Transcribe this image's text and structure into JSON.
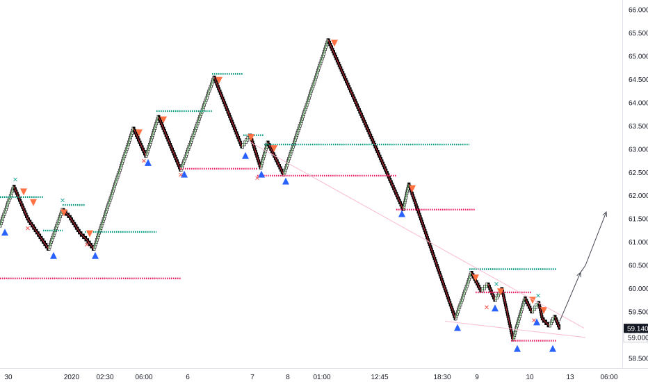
{
  "chart_data": {
    "type": "renko",
    "title": "",
    "xlabel": "",
    "ylabel": "",
    "ylim": [
      58.35,
      66.2
    ],
    "y_ticks": [
      "58.500",
      "59.000",
      "59.500",
      "60.000",
      "60.500",
      "61.000",
      "61.500",
      "62.000",
      "62.500",
      "63.000",
      "63.500",
      "64.000",
      "64.500",
      "65.000",
      "65.500",
      "66.000"
    ],
    "x_ticks": [
      "30",
      "2020",
      "02:30",
      "06:00",
      "6",
      "7",
      "8",
      "01:00",
      "12:45",
      "18:30",
      "9",
      "10",
      "13",
      "06:00"
    ],
    "last_price": "59.140",
    "last_price_alt": "59.000",
    "colors": {
      "up_brick": "#ffffff",
      "down_brick": "#000000",
      "brick_outline": "#000000",
      "up_trend_line": "#4caf50",
      "down_trend_line": "#f23645",
      "resistance": "#089981",
      "support": "#e91e63",
      "buy_signal": "#2962ff",
      "sell_signal": "#ff7043",
      "cross_up": "#26a69a",
      "cross_down": "#ef5350",
      "trendline": "#f8bbd0",
      "arrow": "#434651",
      "price_tag_dark": "#131722",
      "price_tag_light": "#ffffff"
    },
    "path": [
      [
        0,
        61.35
      ],
      [
        20,
        62.2
      ],
      [
        40,
        61.5
      ],
      [
        70,
        60.85
      ],
      [
        90,
        61.7
      ],
      [
        100,
        61.55
      ],
      [
        115,
        61.2
      ],
      [
        125,
        61.05
      ],
      [
        135,
        60.85
      ],
      [
        192,
        63.45
      ],
      [
        210,
        62.85
      ],
      [
        228,
        63.7
      ],
      [
        260,
        62.55
      ],
      [
        308,
        64.55
      ],
      [
        348,
        63.05
      ],
      [
        360,
        63.3
      ],
      [
        375,
        62.6
      ],
      [
        385,
        63.15
      ],
      [
        408,
        62.45
      ],
      [
        472,
        65.35
      ],
      [
        580,
        61.7
      ],
      [
        588,
        62.25
      ],
      [
        655,
        59.35
      ],
      [
        678,
        60.35
      ],
      [
        692,
        59.95
      ],
      [
        702,
        60.1
      ],
      [
        712,
        59.75
      ],
      [
        722,
        60.0
      ],
      [
        738,
        58.9
      ],
      [
        755,
        59.8
      ],
      [
        765,
        59.5
      ],
      [
        775,
        59.7
      ],
      [
        780,
        59.35
      ],
      [
        790,
        59.2
      ],
      [
        798,
        59.4
      ],
      [
        805,
        59.15
      ]
    ],
    "resistance_lines": [
      {
        "x1": 0,
        "x2": 62,
        "y": 61.97
      },
      {
        "x1": 62,
        "x2": 90,
        "y": 61.25
      },
      {
        "x1": 90,
        "x2": 122,
        "y": 61.8
      },
      {
        "x1": 122,
        "x2": 225,
        "y": 61.22
      },
      {
        "x1": 225,
        "x2": 305,
        "y": 63.82
      },
      {
        "x1": 305,
        "x2": 350,
        "y": 64.62
      },
      {
        "x1": 350,
        "x2": 380,
        "y": 63.3
      },
      {
        "x1": 380,
        "x2": 675,
        "y": 63.1
      },
      {
        "x1": 675,
        "x2": 800,
        "y": 60.42
      }
    ],
    "support_lines": [
      {
        "x1": 0,
        "x2": 260,
        "y": 60.22
      },
      {
        "x1": 260,
        "x2": 370,
        "y": 62.58
      },
      {
        "x1": 370,
        "x2": 570,
        "y": 62.43
      },
      {
        "x1": 570,
        "x2": 684,
        "y": 61.7
      },
      {
        "x1": 684,
        "x2": 764,
        "y": 59.92
      },
      {
        "x1": 735,
        "x2": 800,
        "y": 58.88
      }
    ],
    "buy_signals": [
      [
        7,
        61.35
      ],
      [
        77,
        60.85
      ],
      [
        137,
        60.85
      ],
      [
        213,
        62.85
      ],
      [
        265,
        62.6
      ],
      [
        353,
        63.0
      ],
      [
        376,
        62.6
      ],
      [
        411,
        62.45
      ],
      [
        578,
        61.75
      ],
      [
        658,
        59.3
      ],
      [
        712,
        59.72
      ],
      [
        744,
        58.85
      ],
      [
        772,
        59.42
      ],
      [
        795,
        58.85
      ]
    ],
    "sell_signals": [
      [
        34,
        62.05
      ],
      [
        48,
        61.82
      ],
      [
        92,
        61.6
      ],
      [
        129,
        61.15
      ],
      [
        200,
        63.32
      ],
      [
        235,
        63.6
      ],
      [
        315,
        64.45
      ],
      [
        361,
        63.22
      ],
      [
        394,
        62.98
      ],
      [
        481,
        65.25
      ],
      [
        593,
        62.12
      ],
      [
        684,
        60.2
      ],
      [
        720,
        59.9
      ],
      [
        766,
        59.72
      ],
      [
        782,
        59.5
      ]
    ],
    "cross_up": [
      [
        22,
        62.35
      ],
      [
        90,
        61.9
      ],
      [
        714,
        60.1
      ],
      [
        774,
        59.85
      ]
    ],
    "cross_down": [
      [
        40,
        61.3
      ],
      [
        125,
        60.95
      ],
      [
        207,
        62.75
      ],
      [
        260,
        62.45
      ],
      [
        370,
        62.38
      ],
      [
        700,
        59.6
      ],
      [
        768,
        59.32
      ]
    ],
    "trendlines": [
      [
        360,
        63.15,
        840,
        59.15
      ],
      [
        640,
        59.3,
        842,
        58.95
      ]
    ],
    "arrow_points": [
      [
        805,
        59.3
      ],
      [
        835,
        60.35
      ],
      [
        842,
        60.5
      ],
      [
        872,
        61.65
      ]
    ]
  }
}
